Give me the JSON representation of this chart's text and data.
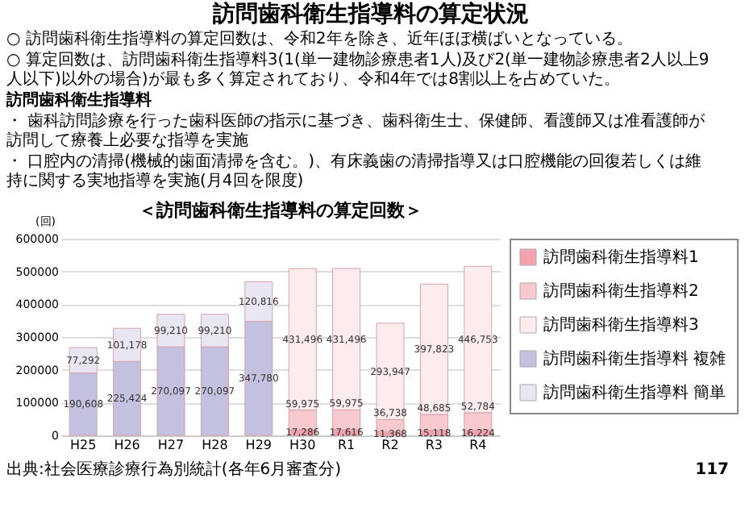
{
  "chart_data": {
    "type": "bar",
    "stacked": true,
    "title": "＜訪問歯科衛生指導料の算定回数＞",
    "ylabel": "(回)",
    "categories": [
      "H25",
      "H26",
      "H27",
      "H28",
      "H29",
      "H30",
      "R1",
      "R2",
      "R3",
      "R4"
    ],
    "series": [
      {
        "name": "訪問歯科衛生指導料1",
        "color": "#f4a3ad",
        "values": [
          null,
          null,
          null,
          null,
          null,
          17286,
          17616,
          11368,
          15118,
          16224
        ],
        "value_labels": [
          null,
          null,
          null,
          null,
          null,
          "17,286",
          "17,616",
          "11,368",
          "15,118",
          "16,224"
        ]
      },
      {
        "name": "訪問歯科衛生指導料2",
        "color": "#f8c9cf",
        "values": [
          null,
          null,
          null,
          null,
          null,
          59975,
          59975,
          36738,
          48685,
          52784
        ],
        "value_labels": [
          null,
          null,
          null,
          null,
          null,
          "59,975",
          "59,975",
          "36,738",
          "48,685",
          "52,784"
        ]
      },
      {
        "name": "訪問歯科衛生指導料3",
        "color": "#fdecee",
        "values": [
          null,
          null,
          null,
          null,
          null,
          431496,
          431496,
          293947,
          397823,
          446753
        ],
        "value_labels": [
          null,
          null,
          null,
          null,
          null,
          "431,496",
          "431,496",
          "293,947",
          "397,823",
          "446,753"
        ]
      },
      {
        "name": "訪問歯科衛生指導料 複雑",
        "color": "#c4c0df",
        "values": [
          190608,
          225424,
          270097,
          270097,
          347780,
          null,
          null,
          null,
          null,
          null
        ],
        "value_labels": [
          "190,608",
          "225,424",
          "270,097",
          "270,097",
          "347,780",
          null,
          null,
          null,
          null,
          null
        ]
      },
      {
        "name": "訪問歯科衛生指導料 簡単",
        "color": "#e8e6f3",
        "values": [
          77292,
          101178,
          99210,
          99210,
          120816,
          null,
          null,
          null,
          null,
          null
        ],
        "value_labels": [
          "77,292",
          "101,178",
          "99,210",
          "99,210",
          "120,816",
          null,
          null,
          null,
          null,
          null
        ]
      }
    ],
    "ylim": [
      0,
      600000
    ],
    "yticks": [
      0,
      100000,
      200000,
      300000,
      400000,
      500000,
      600000
    ],
    "grid": "y",
    "legend": "right",
    "annotations": [
      "訪問歯科衛生指導料の算定状況",
      "○ 訪問歯科衛生指導料の算定回数は、令和2年を除き、近年ほぼ横ばいとなっている。",
      "○ 算定回数は、訪問歯科衛生指導料3(1(単一建物診療患者1人)及び2(単一建物診療患者2人以上9人以下)以外の場合)が最も多く算定されており、令和4年では8割以上を占めていた。",
      "訪問歯科衛生指導料",
      "・ 歯科訪問診療を行った歯科医師の指示に基づき、歯科衛生士、保健師、看護師又は准看護師が訪問して療養上必要な指導を実施",
      "・ 口腔内の清掃(機械的歯面清掃を含む。)、有床義歯の清掃指導又は口腔機能の回復若しくは維持に関する実地指導を実施(月4回を限度)",
      "出典:社会医療診療行為別統計(各年6月審査分)",
      "117"
    ]
  }
}
